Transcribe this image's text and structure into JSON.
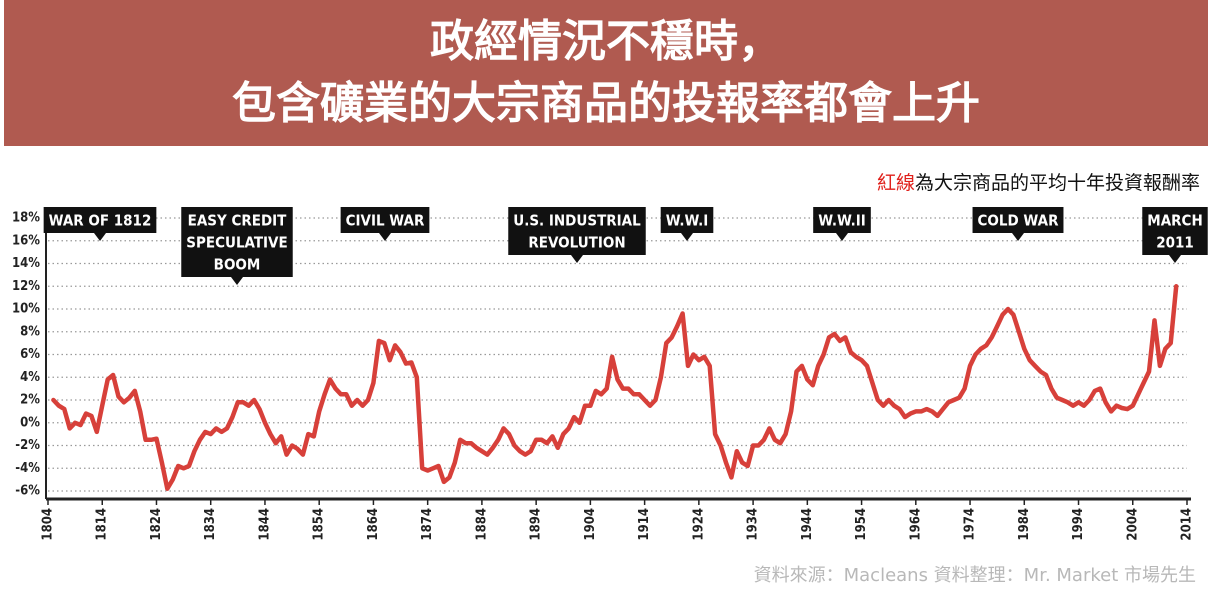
{
  "chart_data": {
    "type": "line",
    "title": [
      "政經情況不穩時，",
      "包含礦業的大宗商品的投報率都會上升"
    ],
    "note": [
      "紅線",
      "為大宗商品的平均十年投資報酬率"
    ],
    "note_highlight_color": "#e0201b",
    "source": "資料來源：Macleans  資料整理：Mr. Market 市場先生",
    "annotations": [
      {
        "lines": [
          "WAR OF 1812"
        ]
      },
      {
        "lines": [
          "EASY CREDIT",
          "SPECULATIVE",
          "BOOM"
        ]
      },
      {
        "lines": [
          "CIVIL WAR"
        ]
      },
      {
        "lines": [
          "U.S. INDUSTRIAL",
          "REVOLUTION"
        ]
      },
      {
        "lines": [
          "W.W.I"
        ]
      },
      {
        "lines": [
          "W.W.II"
        ]
      },
      {
        "lines": [
          "COLD WAR"
        ]
      },
      {
        "lines": [
          "MARCH",
          "2011"
        ]
      }
    ],
    "x": [
      1805,
      1806,
      1807,
      1808,
      1809,
      1810,
      1811,
      1812,
      1813,
      1814,
      1815,
      1816,
      1817,
      1818,
      1819,
      1820,
      1821,
      1822,
      1823,
      1824,
      1825,
      1826,
      1827,
      1828,
      1829,
      1830,
      1831,
      1832,
      1833,
      1834,
      1835,
      1836,
      1837,
      1838,
      1839,
      1840,
      1841,
      1842,
      1843,
      1844,
      1845,
      1846,
      1847,
      1848,
      1849,
      1850,
      1851,
      1852,
      1853,
      1854,
      1855,
      1856,
      1857,
      1858,
      1859,
      1860,
      1861,
      1862,
      1863,
      1864,
      1865,
      1866,
      1867,
      1868,
      1869,
      1870,
      1871,
      1872,
      1873,
      1874,
      1875,
      1876,
      1877,
      1878,
      1879,
      1880,
      1881,
      1882,
      1883,
      1884,
      1885,
      1886,
      1887,
      1888,
      1889,
      1890,
      1891,
      1892,
      1893,
      1894,
      1895,
      1896,
      1897,
      1898,
      1899,
      1900,
      1901,
      1902,
      1903,
      1904,
      1905,
      1906,
      1907,
      1908,
      1909,
      1910,
      1911,
      1912,
      1913,
      1914,
      1915,
      1916,
      1917,
      1918,
      1919,
      1920,
      1921,
      1922,
      1923,
      1924,
      1925,
      1926,
      1927,
      1928,
      1929,
      1930,
      1931,
      1932,
      1933,
      1934,
      1935,
      1936,
      1937,
      1938,
      1939,
      1940,
      1941,
      1942,
      1943,
      1944,
      1945,
      1946,
      1947,
      1948,
      1949,
      1950,
      1951,
      1952,
      1953,
      1954,
      1955,
      1956,
      1957,
      1958,
      1959,
      1960,
      1961,
      1962,
      1963,
      1964,
      1965,
      1966,
      1967,
      1968,
      1969,
      1970,
      1971,
      1972,
      1973,
      1974,
      1975,
      1976,
      1977,
      1978,
      1979,
      1980,
      1981,
      1982,
      1983,
      1984,
      1985,
      1986,
      1987,
      1988,
      1989,
      1990,
      1991,
      1992,
      1993,
      1994,
      1995,
      1996,
      1997,
      1998,
      1999,
      2000,
      2001,
      2002,
      2003,
      2004,
      2005,
      2006,
      2007,
      2008,
      2009,
      2010,
      2011,
      2012
    ],
    "series": [
      {
        "color": "#d7403a",
        "values": [
          2,
          1.5,
          1.2,
          -0.5,
          0,
          -0.2,
          0.8,
          0.6,
          -0.8,
          1.5,
          3.8,
          4.2,
          2.3,
          1.8,
          2.2,
          2.8,
          1.0,
          -1.5,
          -1.5,
          -1.4,
          -3.5,
          -5.8,
          -5.0,
          -3.8,
          -4.0,
          -3.8,
          -2.5,
          -1.5,
          -0.8,
          -1.0,
          -0.5,
          -0.8,
          -0.5,
          0.5,
          1.8,
          1.8,
          1.5,
          2.0,
          1.2,
          0.0,
          -1.0,
          -1.8,
          -1.2,
          -2.8,
          -2.0,
          -2.3,
          -2.8,
          -1.0,
          -1.2,
          1.0,
          2.5,
          3.8,
          3.0,
          2.5,
          2.5,
          1.5,
          2.0,
          1.5,
          2.0,
          3.5,
          7.2,
          7.0,
          5.5,
          6.8,
          6.2,
          5.2,
          5.3,
          4.0,
          -4.0,
          -4.2,
          -4.0,
          -3.8,
          -5.2,
          -4.8,
          -3.5,
          -1.5,
          -1.8,
          -1.8,
          -2.2,
          -2.5,
          -2.8,
          -2.2,
          -1.5,
          -0.5,
          -1.0,
          -2.0,
          -2.5,
          -2.8,
          -2.5,
          -1.5,
          -1.5,
          -1.8,
          -1.2,
          -2.2,
          -1.0,
          -0.5,
          0.5,
          0,
          1.5,
          1.5,
          2.8,
          2.5,
          3.0,
          5.8,
          3.8,
          3.0,
          3.0,
          2.5,
          2.5,
          2.0,
          1.5,
          2.0,
          4.0,
          7.0,
          7.5,
          8.5,
          9.6,
          5.0,
          6.0,
          5.5,
          5.8,
          5.0,
          -1.0,
          -2.0,
          -3.5,
          -4.8,
          -2.5,
          -3.5,
          -3.8,
          -2.0,
          -2.0,
          -1.5,
          -0.5,
          -1.5,
          -1.8,
          -1.0,
          1.0,
          4.5,
          5.0,
          3.8,
          3.3,
          5.0,
          6.0,
          7.5,
          7.8,
          7.2,
          7.5,
          6.2,
          5.8,
          5.5,
          5.0,
          3.5,
          2.0,
          1.5,
          2.0,
          1.5,
          1.2,
          0.5,
          0.8,
          1.0,
          1.0,
          1.2,
          1.0,
          0.6,
          1.2,
          1.8,
          2.0,
          2.2,
          3.0,
          5.0,
          6.0,
          6.5,
          6.8,
          7.5,
          8.5,
          9.5,
          10.0,
          9.5,
          8.0,
          6.5,
          5.5,
          5.0,
          4.5,
          4.2,
          3.0,
          2.2,
          2.0,
          1.8,
          1.5,
          1.8,
          1.5,
          2.0,
          2.8,
          3.0,
          1.8,
          1.0,
          1.5,
          1.3,
          1.2,
          1.5,
          2.5,
          3.5,
          4.5,
          9.0,
          5.0,
          6.5,
          7.0,
          12.0
        ]
      }
    ],
    "xlim": [
      1804,
      2014
    ],
    "xticks": [
      1804,
      1814,
      1824,
      1834,
      1844,
      1854,
      1864,
      1874,
      1884,
      1894,
      1904,
      1914,
      1924,
      1934,
      1944,
      1954,
      1964,
      1974,
      1984,
      1994,
      2004,
      2014
    ],
    "ylim": [
      -6,
      18
    ],
    "yticks": [
      {
        "value": -6,
        "label": "-6%"
      },
      {
        "value": -4,
        "label": "-4%"
      },
      {
        "value": -2,
        "label": "-2%"
      },
      {
        "value": 0,
        "label": "0%"
      },
      {
        "value": 2,
        "label": "2%"
      },
      {
        "value": 4,
        "label": "4%"
      },
      {
        "value": 6,
        "label": "6%"
      },
      {
        "value": 8,
        "label": "8%"
      },
      {
        "value": 10,
        "label": "10%"
      },
      {
        "value": 12,
        "label": "12%"
      },
      {
        "value": 14,
        "label": "14%"
      },
      {
        "value": 16,
        "label": "16%"
      },
      {
        "value": 18,
        "label": "18%"
      }
    ],
    "grid": true
  }
}
